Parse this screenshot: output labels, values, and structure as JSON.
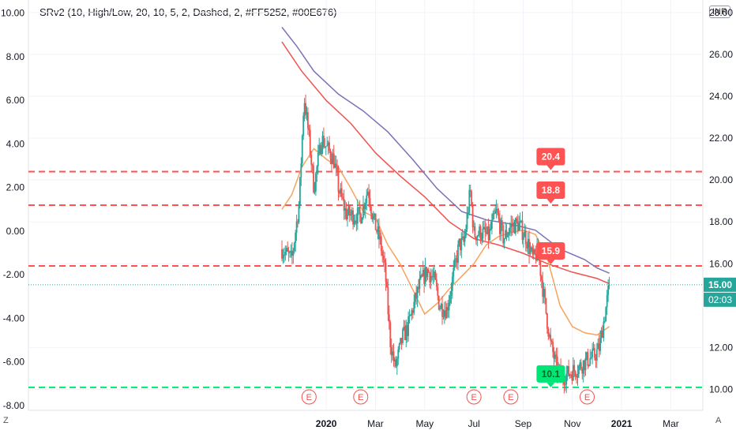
{
  "indicator_legend": "SRv2 (10, High/Low, 20, 10, 5, 2, Dashed, 2, #FF5252, #00E676)",
  "currency": "INR",
  "corner_left": "Z",
  "corner_right": "A",
  "colors": {
    "up": "#26a69a",
    "down": "#ef5350",
    "resistance": "#ff5252",
    "support": "#00e676",
    "ma_fast": "#f7a35c",
    "ma_mid": "#ef5350",
    "ma_slow": "#7e72b6",
    "grid": "#f0f3fa",
    "last_price": "#26a69a"
  },
  "chart_data": {
    "type": "candlestick",
    "xlabel": "",
    "ylabel": "",
    "x_ticks": [
      "2020",
      "Mar",
      "May",
      "Jul",
      "Sep",
      "Nov",
      "2021",
      "Mar"
    ],
    "x_tick_months": [
      12,
      14,
      16,
      18,
      20,
      22,
      24,
      26
    ],
    "x_range_months": [
      -0.1,
      27.3
    ],
    "right_axis": {
      "ticks": [
        28.0,
        26.0,
        24.0,
        22.0,
        20.0,
        18.0,
        16.0,
        12.0,
        10.0
      ],
      "range": [
        9.0,
        28.6
      ]
    },
    "left_axis": {
      "ticks": [
        10.0,
        8.0,
        6.0,
        4.0,
        2.0,
        0.0,
        -2.0,
        -4.0,
        -6.0,
        -8.0
      ],
      "range": [
        -8.22,
        10.6
      ]
    },
    "last_price": 15.0,
    "countdown": "02:03",
    "levels": [
      {
        "label": "20.4",
        "value": 20.4,
        "kind": "resistance",
        "label_month": 20.8
      },
      {
        "label": "18.8",
        "value": 18.8,
        "kind": "resistance",
        "label_month": 20.8
      },
      {
        "label": "15.9",
        "value": 15.9,
        "kind": "resistance",
        "label_month": 20.8
      },
      {
        "label": "10.1",
        "value": 10.1,
        "kind": "support",
        "label_month": 20.8
      }
    ],
    "earnings_label": "E",
    "earnings_months": [
      11.3,
      13.4,
      18.0,
      19.5,
      22.6
    ],
    "price_anchors": [
      [
        10.2,
        16.7
      ],
      [
        10.6,
        16.2
      ],
      [
        10.9,
        18.9
      ],
      [
        11.1,
        24.0
      ],
      [
        11.3,
        22.0
      ],
      [
        11.5,
        19.6
      ],
      [
        11.8,
        22.0
      ],
      [
        12.0,
        21.6
      ],
      [
        12.3,
        21.0
      ],
      [
        12.5,
        19.6
      ],
      [
        12.8,
        18.4
      ],
      [
        13.1,
        18.3
      ],
      [
        13.4,
        18.3
      ],
      [
        13.7,
        19.6
      ],
      [
        13.9,
        18.2
      ],
      [
        14.2,
        17.0
      ],
      [
        14.4,
        15.5
      ],
      [
        14.6,
        12.3
      ],
      [
        14.8,
        11.0
      ],
      [
        15.1,
        12.5
      ],
      [
        15.3,
        12.9
      ],
      [
        15.5,
        13.8
      ],
      [
        15.8,
        15.0
      ],
      [
        16.1,
        15.7
      ],
      [
        16.4,
        15.2
      ],
      [
        16.6,
        14.0
      ],
      [
        16.9,
        13.8
      ],
      [
        17.2,
        15.7
      ],
      [
        17.4,
        16.9
      ],
      [
        17.6,
        17.0
      ],
      [
        17.85,
        19.5
      ],
      [
        18.0,
        17.4
      ],
      [
        18.3,
        17.5
      ],
      [
        18.6,
        17.3
      ],
      [
        18.9,
        18.5
      ],
      [
        19.2,
        17.2
      ],
      [
        19.5,
        17.8
      ],
      [
        19.8,
        17.9
      ],
      [
        20.1,
        17.3
      ],
      [
        20.4,
        16.2
      ],
      [
        20.6,
        16.6
      ],
      [
        20.8,
        14.8
      ],
      [
        21.1,
        12.2
      ],
      [
        21.4,
        10.9
      ],
      [
        21.6,
        10.6
      ],
      [
        21.9,
        10.8
      ],
      [
        22.2,
        11.0
      ],
      [
        22.6,
        11.4
      ],
      [
        22.9,
        11.6
      ],
      [
        23.1,
        12.0
      ],
      [
        23.35,
        13.8
      ],
      [
        23.5,
        15.0
      ]
    ],
    "ma_fast": [
      [
        10.2,
        18.6
      ],
      [
        10.6,
        19.3
      ],
      [
        11.0,
        20.6
      ],
      [
        11.5,
        21.5
      ],
      [
        12.0,
        21.0
      ],
      [
        12.5,
        20.6
      ],
      [
        13.0,
        19.6
      ],
      [
        13.5,
        18.5
      ],
      [
        14.0,
        18.2
      ],
      [
        14.5,
        16.9
      ],
      [
        15.0,
        16.0
      ],
      [
        15.5,
        14.8
      ],
      [
        16.0,
        13.6
      ],
      [
        16.5,
        14.1
      ],
      [
        17.0,
        14.8
      ],
      [
        17.5,
        15.4
      ],
      [
        18.0,
        16.0
      ],
      [
        18.5,
        16.9
      ],
      [
        19.0,
        17.3
      ],
      [
        19.5,
        17.5
      ],
      [
        20.0,
        17.6
      ],
      [
        20.5,
        17.4
      ],
      [
        21.0,
        16.2
      ],
      [
        21.5,
        14.0
      ],
      [
        22.0,
        13.0
      ],
      [
        22.5,
        12.7
      ],
      [
        23.0,
        12.6
      ],
      [
        23.5,
        13.0
      ]
    ],
    "ma_mid": [
      [
        10.2,
        26.6
      ],
      [
        11.0,
        25.2
      ],
      [
        12.0,
        23.8
      ],
      [
        13.0,
        22.7
      ],
      [
        14.0,
        21.3
      ],
      [
        15.0,
        20.2
      ],
      [
        16.0,
        19.2
      ],
      [
        17.0,
        18.0
      ],
      [
        18.0,
        17.2
      ],
      [
        19.0,
        16.9
      ],
      [
        20.0,
        16.5
      ],
      [
        21.0,
        16.0
      ],
      [
        22.0,
        15.6
      ],
      [
        23.0,
        15.3
      ],
      [
        23.5,
        15.05
      ]
    ],
    "ma_slow": [
      [
        10.2,
        27.3
      ],
      [
        10.8,
        26.4
      ],
      [
        11.5,
        25.2
      ],
      [
        12.5,
        24.1
      ],
      [
        13.5,
        23.3
      ],
      [
        14.5,
        22.3
      ],
      [
        15.5,
        21.0
      ],
      [
        16.5,
        19.6
      ],
      [
        17.5,
        18.5
      ],
      [
        18.5,
        18.1
      ],
      [
        19.5,
        17.9
      ],
      [
        20.5,
        17.6
      ],
      [
        21.5,
        16.7
      ],
      [
        22.5,
        16.2
      ],
      [
        23.0,
        15.8
      ],
      [
        23.5,
        15.55
      ]
    ]
  }
}
